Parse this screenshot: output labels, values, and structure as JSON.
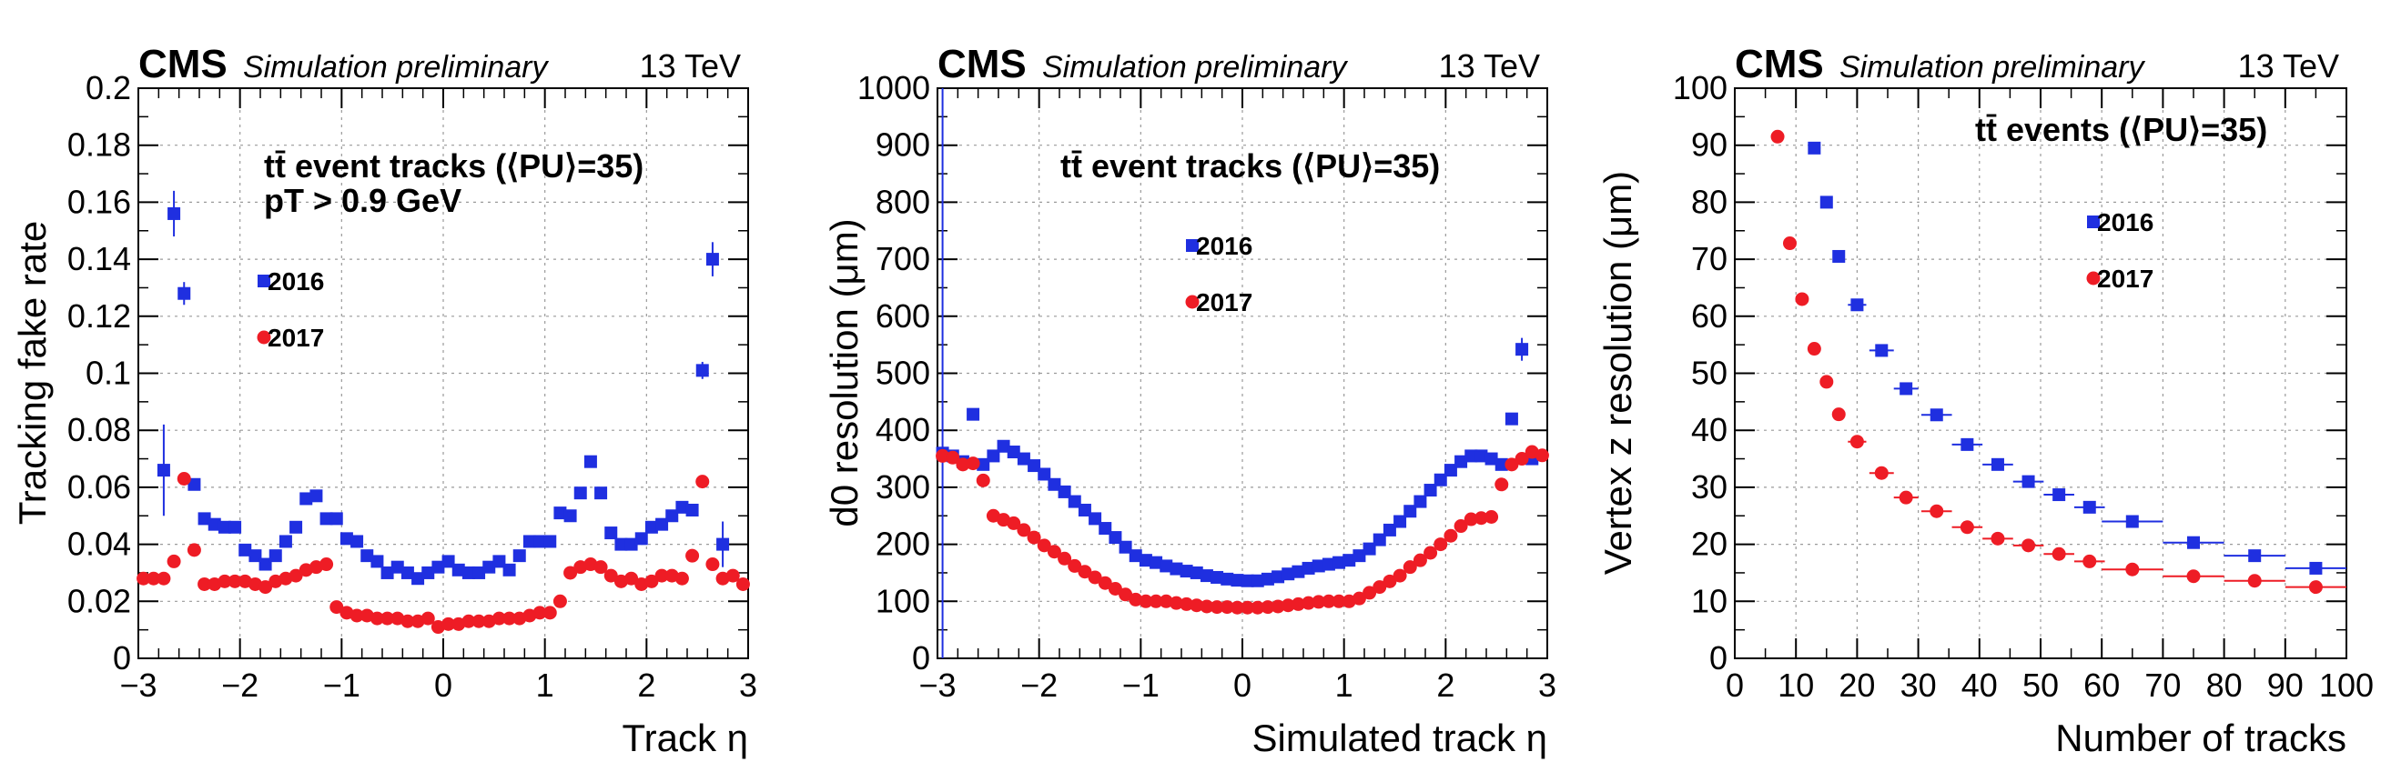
{
  "colors": {
    "s2016": "#1f2fe0",
    "s2017": "#ee1c25"
  },
  "chart_data": [
    {
      "type": "scatter",
      "header": {
        "experiment": "CMS",
        "status": "Simulation preliminary",
        "energy": "13 TeV"
      },
      "xlabel": "Track η",
      "ylabel": "Tracking fake rate",
      "xlim": [
        -3,
        3
      ],
      "ylim": [
        0,
        0.2
      ],
      "xticks": [
        "−3",
        "−2",
        "−1",
        "0",
        "1",
        "2",
        "3"
      ],
      "yticks": [
        "0",
        "0.02",
        "0.04",
        "0.06",
        "0.08",
        "0.1",
        "0.12",
        "0.14",
        "0.16",
        "0.18",
        "0.2"
      ],
      "annotations": [
        "tt̄ event tracks (⟨PU⟩=35)",
        "pT > 0.9 GeV"
      ],
      "grid": true,
      "legend_position": "upper-left",
      "series": [
        {
          "name": "2016",
          "marker": "square",
          "color": "#1f2fe0",
          "x": [
            -2.75,
            -2.65,
            -2.55,
            -2.45,
            -2.35,
            -2.25,
            -2.15,
            -2.05,
            -1.95,
            -1.85,
            -1.75,
            -1.65,
            -1.55,
            -1.45,
            -1.35,
            -1.25,
            -1.15,
            -1.05,
            -0.95,
            -0.85,
            -0.75,
            -0.65,
            -0.55,
            -0.45,
            -0.35,
            -0.25,
            -0.15,
            -0.05,
            0.05,
            0.15,
            0.25,
            0.35,
            0.45,
            0.55,
            0.65,
            0.75,
            0.85,
            0.95,
            1.05,
            1.15,
            1.25,
            1.35,
            1.45,
            1.55,
            1.65,
            1.75,
            1.85,
            1.95,
            2.05,
            2.15,
            2.25,
            2.35,
            2.45,
            2.55,
            2.65,
            2.75
          ],
          "y": [
            0.066,
            0.156,
            0.128,
            0.061,
            0.049,
            0.047,
            0.046,
            0.046,
            0.038,
            0.036,
            0.033,
            0.036,
            0.041,
            0.046,
            0.056,
            0.057,
            0.049,
            0.049,
            0.042,
            0.041,
            0.036,
            0.034,
            0.03,
            0.032,
            0.03,
            0.028,
            0.03,
            0.032,
            0.034,
            0.031,
            0.03,
            0.03,
            0.032,
            0.034,
            0.031,
            0.036,
            0.041,
            0.041,
            0.041,
            0.051,
            0.05,
            0.058,
            0.069,
            0.058,
            0.044,
            0.04,
            0.04,
            0.042,
            0.046,
            0.047,
            0.05,
            0.053,
            0.052,
            0.101,
            0.14,
            0.04
          ],
          "yerr": [
            0.016,
            0.008,
            0.004,
            0.002,
            0.002,
            0.002,
            0.001,
            0.001,
            0.001,
            0.001,
            0.001,
            0.001,
            0.001,
            0.001,
            0.001,
            0.001,
            0.001,
            0.001,
            0.001,
            0.001,
            0.001,
            0.001,
            0.001,
            0.001,
            0.001,
            0.001,
            0.001,
            0.001,
            0.001,
            0.001,
            0.001,
            0.001,
            0.001,
            0.001,
            0.001,
            0.001,
            0.001,
            0.001,
            0.001,
            0.001,
            0.001,
            0.001,
            0.001,
            0.001,
            0.001,
            0.001,
            0.001,
            0.001,
            0.001,
            0.001,
            0.001,
            0.001,
            0.002,
            0.003,
            0.006,
            0.008
          ]
        },
        {
          "name": "2017",
          "marker": "circle",
          "color": "#ee1c25",
          "x": [
            -2.95,
            -2.85,
            -2.75,
            -2.65,
            -2.55,
            -2.45,
            -2.35,
            -2.25,
            -2.15,
            -2.05,
            -1.95,
            -1.85,
            -1.75,
            -1.65,
            -1.55,
            -1.45,
            -1.35,
            -1.25,
            -1.15,
            -1.05,
            -0.95,
            -0.85,
            -0.75,
            -0.65,
            -0.55,
            -0.45,
            -0.35,
            -0.25,
            -0.15,
            -0.05,
            0.05,
            0.15,
            0.25,
            0.35,
            0.45,
            0.55,
            0.65,
            0.75,
            0.85,
            0.95,
            1.05,
            1.15,
            1.25,
            1.35,
            1.45,
            1.55,
            1.65,
            1.75,
            1.85,
            1.95,
            2.05,
            2.15,
            2.25,
            2.35,
            2.45,
            2.55,
            2.65,
            2.75,
            2.85,
            2.95
          ],
          "y": [
            0.028,
            0.028,
            0.028,
            0.034,
            0.063,
            0.038,
            0.026,
            0.026,
            0.027,
            0.027,
            0.027,
            0.026,
            0.025,
            0.027,
            0.028,
            0.029,
            0.031,
            0.032,
            0.033,
            0.018,
            0.016,
            0.015,
            0.015,
            0.014,
            0.014,
            0.014,
            0.013,
            0.013,
            0.014,
            0.011,
            0.012,
            0.012,
            0.013,
            0.013,
            0.013,
            0.014,
            0.014,
            0.014,
            0.015,
            0.016,
            0.016,
            0.02,
            0.03,
            0.032,
            0.033,
            0.032,
            0.029,
            0.027,
            0.028,
            0.026,
            0.027,
            0.029,
            0.029,
            0.028,
            0.036,
            0.062,
            0.033,
            0.028,
            0.029,
            0.026
          ],
          "yerr": [
            0.001,
            0.001,
            0.001,
            0.001,
            0.002,
            0.001,
            0.001,
            0.001,
            0.001,
            0.001,
            0.001,
            0.001,
            0.001,
            0.001,
            0.001,
            0.001,
            0.001,
            0.001,
            0.001,
            0.001,
            0.001,
            0.001,
            0.001,
            0.001,
            0.001,
            0.001,
            0.001,
            0.001,
            0.001,
            0.001,
            0.001,
            0.001,
            0.001,
            0.001,
            0.001,
            0.001,
            0.001,
            0.001,
            0.001,
            0.001,
            0.001,
            0.001,
            0.001,
            0.001,
            0.001,
            0.001,
            0.001,
            0.001,
            0.001,
            0.001,
            0.001,
            0.001,
            0.001,
            0.001,
            0.001,
            0.002,
            0.001,
            0.001,
            0.001,
            0.001
          ]
        }
      ]
    },
    {
      "type": "scatter",
      "header": {
        "experiment": "CMS",
        "status": "Simulation preliminary",
        "energy": "13 TeV"
      },
      "xlabel": "Simulated track η",
      "ylabel": "d0 resolution (μm)",
      "xlim": [
        -3,
        3
      ],
      "ylim": [
        0,
        1000
      ],
      "xticks": [
        "−3",
        "−2",
        "−1",
        "0",
        "1",
        "2",
        "3"
      ],
      "yticks": [
        "0",
        "100",
        "200",
        "300",
        "400",
        "500",
        "600",
        "700",
        "800",
        "900",
        "1000"
      ],
      "annotations": [
        "tt̄ event tracks (⟨PU⟩=35)"
      ],
      "grid": true,
      "legend_position": "upper-center",
      "series": [
        {
          "name": "2016",
          "marker": "square",
          "color": "#1f2fe0",
          "x": [
            -2.95,
            -2.85,
            -2.75,
            -2.65,
            -2.55,
            -2.45,
            -2.35,
            -2.25,
            -2.15,
            -2.05,
            -1.95,
            -1.85,
            -1.75,
            -1.65,
            -1.55,
            -1.45,
            -1.35,
            -1.25,
            -1.15,
            -1.05,
            -0.95,
            -0.85,
            -0.75,
            -0.65,
            -0.55,
            -0.45,
            -0.35,
            -0.25,
            -0.15,
            -0.05,
            0.05,
            0.15,
            0.25,
            0.35,
            0.45,
            0.55,
            0.65,
            0.75,
            0.85,
            0.95,
            1.05,
            1.15,
            1.25,
            1.35,
            1.45,
            1.55,
            1.65,
            1.75,
            1.85,
            1.95,
            2.05,
            2.15,
            2.25,
            2.35,
            2.45,
            2.55,
            2.65,
            2.75,
            2.85
          ],
          "y": [
            360,
            355,
            345,
            428,
            340,
            355,
            372,
            362,
            350,
            338,
            323,
            305,
            292,
            275,
            260,
            245,
            228,
            212,
            195,
            180,
            172,
            168,
            162,
            157,
            153,
            150,
            145,
            142,
            139,
            137,
            136,
            136,
            139,
            143,
            148,
            152,
            158,
            162,
            165,
            168,
            172,
            180,
            192,
            208,
            225,
            240,
            258,
            275,
            295,
            313,
            330,
            345,
            355,
            355,
            350,
            340,
            420,
            542,
            350
          ],
          "yerr": [
            900,
            3,
            3,
            3,
            3,
            3,
            3,
            3,
            3,
            3,
            3,
            3,
            3,
            3,
            3,
            3,
            3,
            3,
            3,
            3,
            3,
            3,
            3,
            3,
            3,
            3,
            3,
            3,
            3,
            3,
            3,
            3,
            3,
            3,
            3,
            3,
            3,
            3,
            3,
            3,
            3,
            3,
            3,
            3,
            3,
            3,
            3,
            3,
            3,
            3,
            3,
            3,
            3,
            3,
            3,
            3,
            5,
            20,
            3
          ]
        },
        {
          "name": "2017",
          "marker": "circle",
          "color": "#ee1c25",
          "x": [
            -2.95,
            -2.85,
            -2.75,
            -2.65,
            -2.55,
            -2.45,
            -2.35,
            -2.25,
            -2.15,
            -2.05,
            -1.95,
            -1.85,
            -1.75,
            -1.65,
            -1.55,
            -1.45,
            -1.35,
            -1.25,
            -1.15,
            -1.05,
            -0.95,
            -0.85,
            -0.75,
            -0.65,
            -0.55,
            -0.45,
            -0.35,
            -0.25,
            -0.15,
            -0.05,
            0.05,
            0.15,
            0.25,
            0.35,
            0.45,
            0.55,
            0.65,
            0.75,
            0.85,
            0.95,
            1.05,
            1.15,
            1.25,
            1.35,
            1.45,
            1.55,
            1.65,
            1.75,
            1.85,
            1.95,
            2.05,
            2.15,
            2.25,
            2.35,
            2.45,
            2.55,
            2.65,
            2.75,
            2.85,
            2.95
          ],
          "y": [
            355,
            352,
            340,
            342,
            312,
            250,
            243,
            237,
            225,
            212,
            198,
            187,
            175,
            162,
            152,
            142,
            132,
            122,
            112,
            103,
            100,
            100,
            100,
            97,
            95,
            93,
            91,
            90,
            90,
            89,
            89,
            89,
            90,
            91,
            93,
            95,
            97,
            99,
            100,
            100,
            100,
            105,
            115,
            125,
            135,
            145,
            160,
            172,
            185,
            200,
            215,
            232,
            244,
            246,
            248,
            305,
            340,
            350,
            362,
            356
          ],
          "yerr": [
            5,
            3,
            3,
            3,
            3,
            3,
            3,
            3,
            3,
            3,
            3,
            3,
            3,
            3,
            3,
            3,
            3,
            3,
            3,
            3,
            3,
            3,
            3,
            3,
            3,
            3,
            3,
            3,
            3,
            3,
            3,
            3,
            3,
            3,
            3,
            3,
            3,
            3,
            3,
            3,
            3,
            3,
            3,
            3,
            3,
            3,
            3,
            3,
            3,
            3,
            3,
            3,
            3,
            3,
            3,
            3,
            3,
            3,
            3,
            3
          ]
        }
      ]
    },
    {
      "type": "scatter",
      "header": {
        "experiment": "CMS",
        "status": "Simulation preliminary",
        "energy": "13 TeV"
      },
      "xlabel": "Number of tracks",
      "ylabel": "Vertex z resolution (μm)",
      "xlim": [
        0,
        100
      ],
      "ylim": [
        0,
        100
      ],
      "xticks": [
        "0",
        "10",
        "20",
        "30",
        "40",
        "50",
        "60",
        "70",
        "80",
        "90",
        "100"
      ],
      "yticks": [
        "0",
        "10",
        "20",
        "30",
        "40",
        "50",
        "60",
        "70",
        "80",
        "90",
        "100"
      ],
      "annotations": [
        "tt̄ events (⟨PU⟩=35)"
      ],
      "grid": true,
      "legend_position": "upper-right",
      "series": [
        {
          "name": "2016",
          "marker": "square",
          "color": "#1f2fe0",
          "x": [
            13,
            15,
            17,
            20,
            24,
            28,
            33,
            38,
            43,
            48,
            53,
            58,
            65,
            75,
            85,
            95
          ],
          "xerr": [
            1,
            1,
            1,
            1.5,
            2,
            2,
            2.5,
            2.5,
            2.5,
            2.5,
            2.5,
            2.5,
            5,
            5,
            5,
            5
          ],
          "y": [
            89.5,
            80,
            70.5,
            62,
            54,
            47.3,
            42.7,
            37.5,
            34,
            31,
            28.7,
            26.5,
            24,
            20.3,
            18,
            15.8
          ],
          "yerr": [
            0.5,
            0.5,
            0.5,
            0.5,
            0.5,
            0.5,
            0.5,
            0.5,
            0.5,
            0.5,
            0.5,
            0.5,
            0.5,
            0.5,
            0.5,
            0.5
          ]
        },
        {
          "name": "2017",
          "marker": "circle",
          "color": "#ee1c25",
          "x": [
            7,
            9,
            11,
            13,
            15,
            17,
            20,
            24,
            28,
            33,
            38,
            43,
            48,
            53,
            58,
            65,
            75,
            85,
            95
          ],
          "xerr": [
            1,
            1,
            1,
            1,
            1,
            1,
            1.5,
            2,
            2,
            2.5,
            2.5,
            2.5,
            2.5,
            2.5,
            2.5,
            5,
            5,
            5,
            5
          ],
          "y": [
            91.5,
            72.8,
            63,
            54.3,
            48.5,
            42.8,
            38,
            32.5,
            28.2,
            25.8,
            23,
            21,
            19.8,
            18.3,
            17,
            15.6,
            14.4,
            13.6,
            12.5
          ],
          "yerr": [
            0.5,
            0.5,
            0.5,
            0.5,
            0.5,
            0.5,
            0.5,
            0.5,
            0.5,
            0.5,
            0.5,
            0.5,
            0.5,
            0.5,
            0.5,
            0.5,
            0.5,
            0.5,
            0.5
          ]
        }
      ]
    }
  ]
}
